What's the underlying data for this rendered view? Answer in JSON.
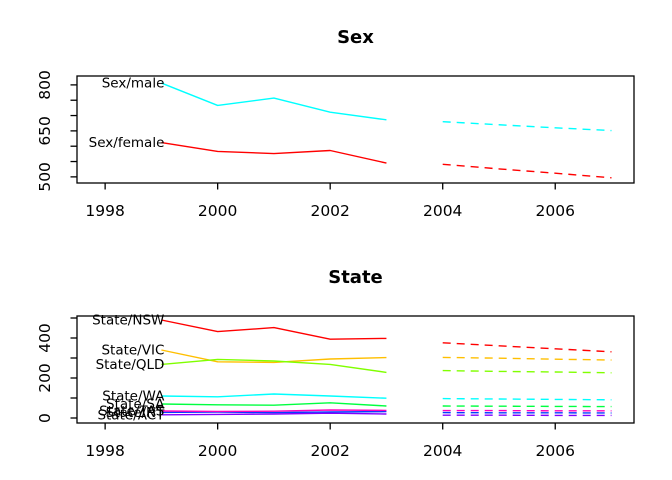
{
  "figure": {
    "background": "#ffffff",
    "text_color": "#000000"
  },
  "chart_data": [
    {
      "id": "sex-chart",
      "type": "line",
      "title": "Sex",
      "xlabel": "",
      "ylabel": "",
      "grid": false,
      "legend": "labels-at-line-start",
      "xlim": [
        1997.5,
        2007.4
      ],
      "ylim": [
        480,
        829
      ],
      "xticks": [
        1998,
        2000,
        2002,
        2004,
        2006
      ],
      "yticks": {
        "from": 500,
        "to": 800,
        "step": 50,
        "labels": [
          500,
          650,
          800
        ]
      },
      "x_solid": [
        1999,
        2000,
        2001,
        2002,
        2003
      ],
      "x_forecast": [
        2004,
        2005,
        2006,
        2007
      ],
      "series": [
        {
          "name": "Sex/female",
          "color": "#FF0000",
          "values": [
            612,
            583,
            576,
            586,
            545
          ],
          "forecast": [
            541,
            526,
            512,
            497
          ]
        },
        {
          "name": "Sex/male",
          "color": "#00FFFF",
          "values": [
            806,
            733,
            757,
            711,
            686
          ],
          "forecast": [
            680,
            670,
            660,
            651
          ]
        }
      ]
    },
    {
      "id": "state-chart",
      "type": "line",
      "title": "State",
      "xlabel": "",
      "ylabel": "",
      "grid": false,
      "legend": "labels-at-line-start",
      "xlim": [
        1997.5,
        2007.4
      ],
      "ylim": [
        -25,
        510
      ],
      "xticks": [
        1998,
        2000,
        2002,
        2004,
        2006
      ],
      "yticks": {
        "from": 0,
        "to": 500,
        "step": 100,
        "labels": [
          0,
          200,
          400
        ]
      },
      "x_solid": [
        1999,
        2000,
        2001,
        2002,
        2003
      ],
      "x_forecast": [
        2004,
        2005,
        2006,
        2007
      ],
      "series": [
        {
          "name": "State/NSW",
          "color": "#FF0000",
          "values": [
            490,
            432,
            452,
            394,
            398
          ],
          "forecast": [
            376,
            361,
            346,
            331
          ]
        },
        {
          "name": "State/VIC",
          "color": "#FFBF00",
          "values": [
            340,
            281,
            278,
            295,
            302
          ],
          "forecast": [
            303,
            299,
            294,
            290
          ]
        },
        {
          "name": "State/QLD",
          "color": "#80FF00",
          "values": [
            268,
            293,
            285,
            268,
            228
          ],
          "forecast": [
            237,
            233,
            230,
            226
          ]
        },
        {
          "name": "State/SA",
          "color": "#00FF40",
          "values": [
            70,
            66,
            64,
            76,
            60
          ],
          "forecast": [
            60,
            59,
            58,
            57
          ]
        },
        {
          "name": "State/WA",
          "color": "#00FFFF",
          "values": [
            110,
            106,
            120,
            110,
            99
          ],
          "forecast": [
            97,
            95,
            93,
            91
          ]
        },
        {
          "name": "State/NT",
          "color": "#0040FF",
          "values": [
            28,
            30,
            27,
            30,
            32
          ],
          "forecast": [
            27,
            26,
            26,
            25
          ]
        },
        {
          "name": "State/ACT",
          "color": "#8000FF",
          "values": [
            16,
            18,
            20,
            24,
            20
          ],
          "forecast": [
            14,
            14,
            13,
            13
          ]
        },
        {
          "name": "State/TAS",
          "color": "#FF00BF",
          "values": [
            35,
            33,
            34,
            40,
            38
          ],
          "forecast": [
            37,
            37,
            36,
            36
          ]
        }
      ]
    }
  ]
}
